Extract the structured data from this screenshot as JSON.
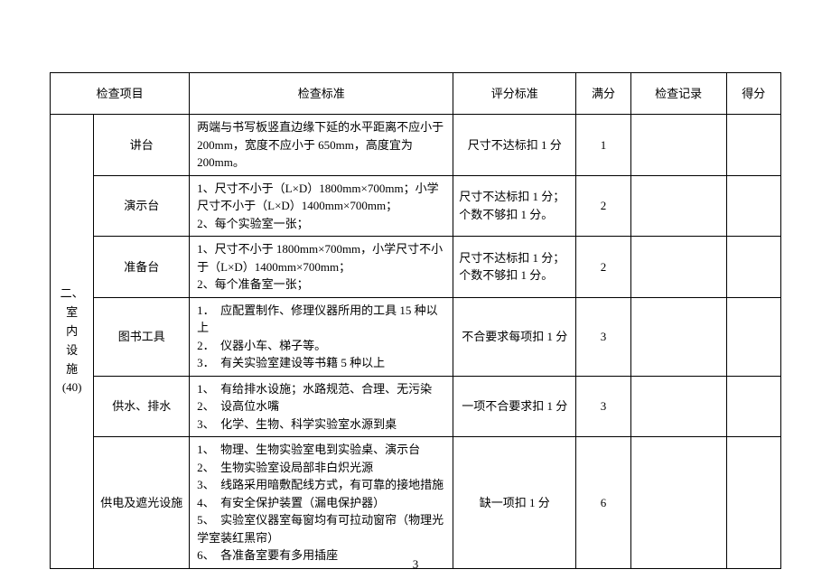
{
  "page_number": "3",
  "headers": {
    "category": "检查项目",
    "standard": "检查标准",
    "scoring": "评分标准",
    "full": "满分",
    "record": "检查记录",
    "mark": "得分"
  },
  "category": {
    "line1": "二、",
    "line2": "室",
    "line3": "内",
    "line4": "设",
    "line5": "施",
    "line6": "(40)"
  },
  "rows": [
    {
      "item": "讲台",
      "standard": "两端与书写板竖直边缘下延的水平距离不应小于 200mm，宽度不应小于 650mm，高度宜为 200mm。",
      "scoring": "尺寸不达标扣 1 分",
      "full": "1"
    },
    {
      "item": "演示台",
      "standard": "1、尺寸不小于（L×D）1800mm×700mm；小学尺寸不小于（L×D）1400mm×700mm；\n2、每个实验室一张；",
      "scoring": "尺寸不达标扣 1 分；个数不够扣 1 分。",
      "full": "2"
    },
    {
      "item": "准备台",
      "standard": "1、尺寸不小于 1800mm×700mm，小学尺寸不小于（L×D）1400mm×700mm；\n2、每个准备室一张；",
      "scoring": "尺寸不达标扣 1 分；个数不够扣 1 分。",
      "full": "2"
    },
    {
      "item": "图书工具",
      "standard": "1．　应配置制作、修理仪器所用的工具 15 种以上\n2．　仪器小车、梯子等。\n3．　有关实验室建设等书籍 5 种以上",
      "scoring": "不合要求每项扣 1 分",
      "full": "3"
    },
    {
      "item": "供水、排水",
      "standard": "1、　有给排水设施；水路规范、合理、无污染\n2、　设高位水嘴\n3、　化学、生物、科学实验室水源到桌",
      "scoring": "一项不合要求扣 1 分",
      "full": "3"
    },
    {
      "item": "供电及遮光设施",
      "standard": "1、　物理、生物实验室电到实验桌、演示台\n2、　生物实验室设局部非白炽光源\n3、　线路采用暗敷配线方式，有可靠的接地措施\n4、　有安全保护装置（漏电保护器）\n5、　实验室仪器室每窗均有可拉动窗帘（物理光学室装红黑帘）\n6、　各准备室要有多用插座",
      "scoring": "缺一项扣 1 分",
      "full": "6"
    }
  ]
}
